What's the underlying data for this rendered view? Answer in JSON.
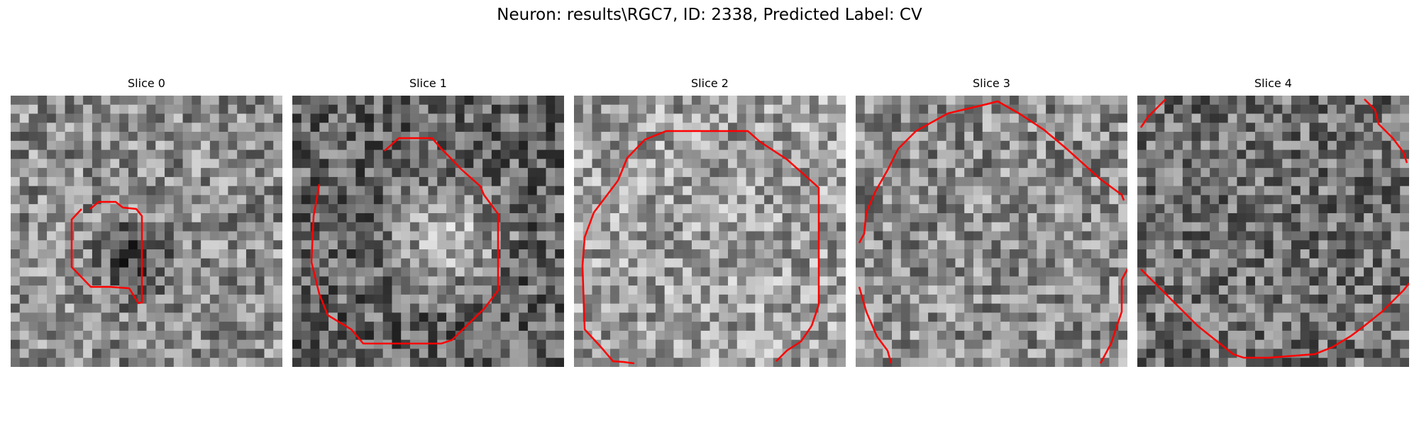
{
  "figure": {
    "title": "Neuron: results\\RGC7, ID: 2338, Predicted Label: CV"
  },
  "contour_color": "#ff0000",
  "grid_size": 30,
  "slices": [
    {
      "title": "Slice 0",
      "seed": 11,
      "base": 0.55,
      "blob": 0.0,
      "dark_patch": 0.7
    },
    {
      "title": "Slice 1",
      "seed": 23,
      "base": 0.4,
      "blob": 0.35,
      "dark_patch": 0.0
    },
    {
      "title": "Slice 2",
      "seed": 37,
      "base": 0.62,
      "blob": 0.0,
      "dark_patch": 0.0
    },
    {
      "title": "Slice 3",
      "seed": 51,
      "base": 0.55,
      "blob": 0.0,
      "dark_patch": 0.0
    },
    {
      "title": "Slice 4",
      "seed": 67,
      "base": 0.45,
      "blob": 0.0,
      "dark_patch": 0.0
    }
  ]
}
